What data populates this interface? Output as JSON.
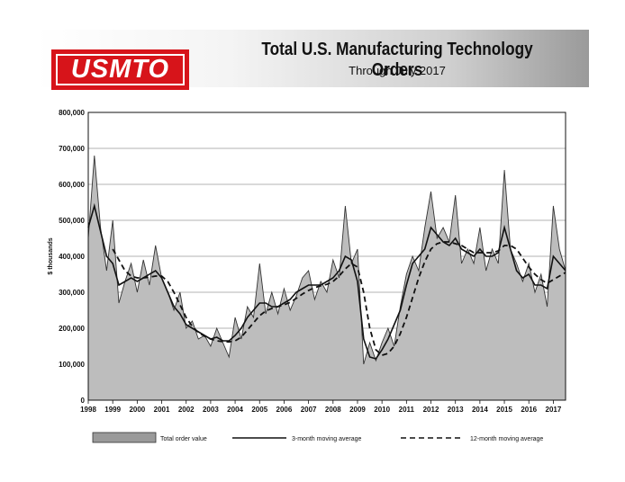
{
  "header": {
    "logo_text": "USMTO",
    "title": "Total U.S. Manufacturing Technology Orders",
    "subtitle": "Through July 2017"
  },
  "colors": {
    "logo_red": "#d7141a",
    "area_fill": "#bdbdbd",
    "line": "#111111",
    "grid": "#9a9a9a"
  },
  "chart_data": {
    "type": "area",
    "title": "Total U.S. Manufacturing Technology Orders",
    "subtitle": "Through July 2017",
    "xlabel": "",
    "ylabel": "$ thousands",
    "xlim": [
      "1998-01",
      "2017-07"
    ],
    "ylim": [
      0,
      800000
    ],
    "grid": true,
    "legend_placement": "bottom",
    "y_ticks": [
      "0",
      "100,000",
      "200,000",
      "300,000",
      "400,000",
      "500,000",
      "600,000",
      "700,000",
      "800,000"
    ],
    "x_ticks": [
      "1998",
      "1999",
      "2000",
      "2001",
      "2002",
      "2003",
      "2004",
      "2005",
      "2006",
      "2007",
      "2008",
      "2009",
      "2010",
      "2011",
      "2012",
      "2013",
      "2014",
      "2015",
      "2016",
      "2017"
    ],
    "series": [
      {
        "name": "Total order value",
        "style": "area",
        "x": [
          "1998-01",
          "1998-04",
          "1998-07",
          "1998-10",
          "1999-01",
          "1999-04",
          "1999-07",
          "1999-10",
          "2000-01",
          "2000-04",
          "2000-07",
          "2000-10",
          "2001-01",
          "2001-04",
          "2001-07",
          "2001-10",
          "2002-01",
          "2002-04",
          "2002-07",
          "2002-10",
          "2003-01",
          "2003-04",
          "2003-07",
          "2003-10",
          "2004-01",
          "2004-04",
          "2004-07",
          "2004-10",
          "2005-01",
          "2005-04",
          "2005-07",
          "2005-10",
          "2006-01",
          "2006-04",
          "2006-07",
          "2006-10",
          "2007-01",
          "2007-04",
          "2007-07",
          "2007-10",
          "2008-01",
          "2008-04",
          "2008-07",
          "2008-10",
          "2009-01",
          "2009-04",
          "2009-07",
          "2009-10",
          "2010-01",
          "2010-04",
          "2010-07",
          "2010-10",
          "2011-01",
          "2011-04",
          "2011-07",
          "2011-10",
          "2012-01",
          "2012-04",
          "2012-07",
          "2012-10",
          "2013-01",
          "2013-04",
          "2013-07",
          "2013-10",
          "2014-01",
          "2014-04",
          "2014-07",
          "2014-10",
          "2015-01",
          "2015-04",
          "2015-07",
          "2015-10",
          "2016-01",
          "2016-04",
          "2016-07",
          "2016-10",
          "2017-01",
          "2017-04",
          "2017-07"
        ],
        "values": [
          450000,
          680000,
          480000,
          360000,
          500000,
          270000,
          330000,
          380000,
          300000,
          390000,
          320000,
          430000,
          340000,
          300000,
          250000,
          300000,
          200000,
          220000,
          170000,
          180000,
          150000,
          200000,
          160000,
          120000,
          230000,
          170000,
          260000,
          230000,
          380000,
          240000,
          300000,
          240000,
          310000,
          250000,
          290000,
          340000,
          360000,
          280000,
          330000,
          300000,
          390000,
          340000,
          540000,
          380000,
          420000,
          100000,
          160000,
          110000,
          160000,
          200000,
          150000,
          260000,
          350000,
          400000,
          360000,
          480000,
          580000,
          450000,
          480000,
          440000,
          570000,
          380000,
          420000,
          380000,
          480000,
          360000,
          420000,
          380000,
          640000,
          420000,
          380000,
          330000,
          380000,
          300000,
          350000,
          260000,
          540000,
          420000,
          360000
        ]
      },
      {
        "name": "3-month moving average",
        "style": "solid",
        "x": [
          "1998-01",
          "1998-04",
          "1998-07",
          "1998-10",
          "1999-01",
          "1999-04",
          "1999-07",
          "1999-10",
          "2000-01",
          "2000-04",
          "2000-07",
          "2000-10",
          "2001-01",
          "2001-04",
          "2001-07",
          "2001-10",
          "2002-01",
          "2002-04",
          "2002-07",
          "2002-10",
          "2003-01",
          "2003-04",
          "2003-07",
          "2003-10",
          "2004-01",
          "2004-04",
          "2004-07",
          "2004-10",
          "2005-01",
          "2005-04",
          "2005-07",
          "2005-10",
          "2006-01",
          "2006-04",
          "2006-07",
          "2006-10",
          "2007-01",
          "2007-04",
          "2007-07",
          "2007-10",
          "2008-01",
          "2008-04",
          "2008-07",
          "2008-10",
          "2009-01",
          "2009-04",
          "2009-07",
          "2009-10",
          "2010-01",
          "2010-04",
          "2010-07",
          "2010-10",
          "2011-01",
          "2011-04",
          "2011-07",
          "2011-10",
          "2012-01",
          "2012-04",
          "2012-07",
          "2012-10",
          "2013-01",
          "2013-04",
          "2013-07",
          "2013-10",
          "2014-01",
          "2014-04",
          "2014-07",
          "2014-10",
          "2015-01",
          "2015-04",
          "2015-07",
          "2015-10",
          "2016-01",
          "2016-04",
          "2016-07",
          "2016-10",
          "2017-01",
          "2017-04",
          "2017-07"
        ],
        "values": [
          480000,
          540000,
          470000,
          400000,
          380000,
          320000,
          330000,
          340000,
          330000,
          340000,
          350000,
          360000,
          340000,
          300000,
          260000,
          240000,
          210000,
          200000,
          190000,
          180000,
          170000,
          175000,
          165000,
          165000,
          180000,
          200000,
          230000,
          250000,
          270000,
          270000,
          260000,
          260000,
          270000,
          280000,
          300000,
          310000,
          320000,
          320000,
          320000,
          330000,
          340000,
          360000,
          400000,
          390000,
          330000,
          170000,
          120000,
          115000,
          140000,
          170000,
          210000,
          250000,
          320000,
          380000,
          400000,
          420000,
          480000,
          460000,
          440000,
          430000,
          450000,
          420000,
          410000,
          400000,
          420000,
          400000,
          400000,
          410000,
          480000,
          420000,
          360000,
          340000,
          350000,
          320000,
          320000,
          310000,
          400000,
          380000,
          360000
        ]
      },
      {
        "name": "12-month moving average",
        "style": "dashed",
        "x": [
          "1999-01",
          "1999-04",
          "1999-07",
          "1999-10",
          "2000-01",
          "2000-04",
          "2000-07",
          "2000-10",
          "2001-01",
          "2001-04",
          "2001-07",
          "2001-10",
          "2002-01",
          "2002-04",
          "2002-07",
          "2002-10",
          "2003-01",
          "2003-04",
          "2003-07",
          "2003-10",
          "2004-01",
          "2004-04",
          "2004-07",
          "2004-10",
          "2005-01",
          "2005-04",
          "2005-07",
          "2005-10",
          "2006-01",
          "2006-04",
          "2006-07",
          "2006-10",
          "2007-01",
          "2007-04",
          "2007-07",
          "2007-10",
          "2008-01",
          "2008-04",
          "2008-07",
          "2008-10",
          "2009-01",
          "2009-04",
          "2009-07",
          "2009-10",
          "2010-01",
          "2010-04",
          "2010-07",
          "2010-10",
          "2011-01",
          "2011-04",
          "2011-07",
          "2011-10",
          "2012-01",
          "2012-04",
          "2012-07",
          "2012-10",
          "2013-01",
          "2013-04",
          "2013-07",
          "2013-10",
          "2014-01",
          "2014-04",
          "2014-07",
          "2014-10",
          "2015-01",
          "2015-04",
          "2015-07",
          "2015-10",
          "2016-01",
          "2016-04",
          "2016-07",
          "2016-10",
          "2017-01",
          "2017-04",
          "2017-07"
        ],
        "values": [
          420000,
          390000,
          360000,
          345000,
          340000,
          340000,
          342000,
          345000,
          345000,
          330000,
          300000,
          265000,
          230000,
          205000,
          188000,
          178000,
          170000,
          165000,
          163000,
          162000,
          165000,
          175000,
          195000,
          215000,
          235000,
          248000,
          255000,
          260000,
          265000,
          272000,
          283000,
          295000,
          305000,
          313000,
          318000,
          322000,
          330000,
          345000,
          365000,
          380000,
          370000,
          300000,
          200000,
          140000,
          125000,
          130000,
          150000,
          185000,
          230000,
          285000,
          340000,
          385000,
          420000,
          435000,
          440000,
          440000,
          435000,
          430000,
          420000,
          410000,
          410000,
          410000,
          410000,
          415000,
          430000,
          430000,
          420000,
          395000,
          370000,
          350000,
          335000,
          325000,
          335000,
          345000,
          355000
        ]
      }
    ]
  },
  "legend": {
    "total_label": "Total order value",
    "ma3_label": "3-month moving average",
    "ma12_label": "12-month moving average"
  }
}
